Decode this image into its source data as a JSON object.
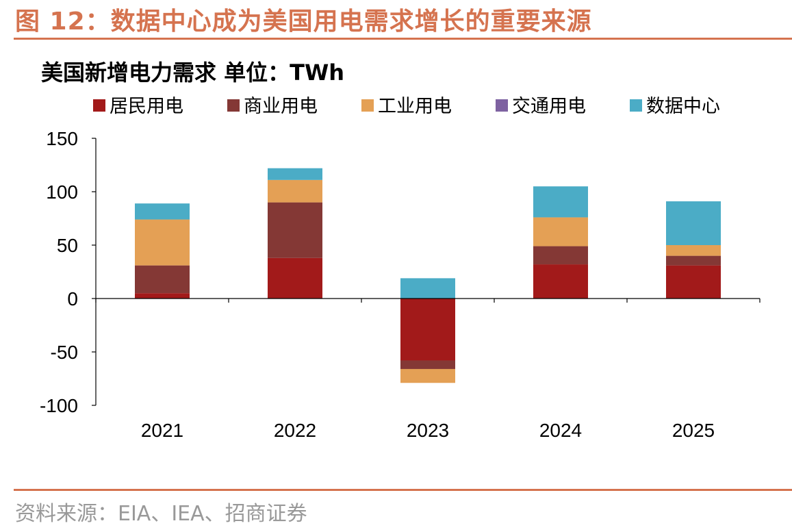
{
  "figure_title": "图 12：数据中心成为美国用电需求增长的重要来源",
  "source": "资料来源：EIA、IEA、招商证券",
  "chart_data": {
    "type": "bar",
    "stacked": true,
    "title": "美国新增电力需求 单位：TWh",
    "categories": [
      "2021",
      "2022",
      "2023",
      "2024",
      "2025"
    ],
    "ylim": [
      -100,
      150
    ],
    "yticks": [
      150,
      100,
      50,
      0,
      -50,
      -100
    ],
    "xlabel": "",
    "ylabel": "",
    "grid": false,
    "legend_position": "top",
    "series": [
      {
        "name": "居民用电",
        "color": "#A21A1A",
        "values": [
          5,
          38,
          -58,
          32,
          31
        ]
      },
      {
        "name": "商业用电",
        "color": "#843835",
        "values": [
          26,
          52,
          -8,
          17,
          9
        ]
      },
      {
        "name": "工业用电",
        "color": "#E4A055",
        "values": [
          43,
          21,
          -13,
          27,
          10
        ]
      },
      {
        "name": "交通用电",
        "color": "#7E62A1",
        "values": [
          0,
          0,
          0,
          0,
          0
        ]
      },
      {
        "name": "数据中心",
        "color": "#4BACC6",
        "values": [
          15,
          11,
          19,
          29,
          41
        ]
      }
    ]
  }
}
